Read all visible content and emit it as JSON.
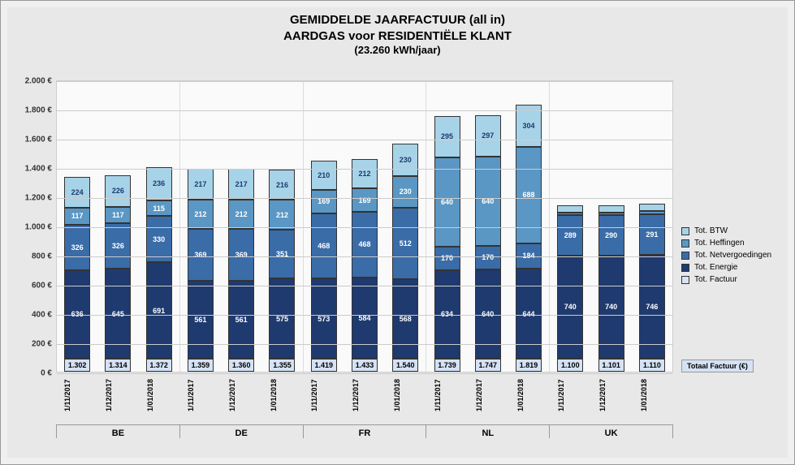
{
  "title": {
    "line1": "GEMIDDELDE JAARFACTUUR (all in)",
    "line2": "AARDGAS voor RESIDENTIËLE KLANT",
    "line3": "(23.260 kWh/jaar)",
    "fontsize_main": 15,
    "fontsize_sub": 13,
    "color": "#000000"
  },
  "chart": {
    "type": "stacked-bar",
    "background_color": "#fafafa",
    "container_bg": "#e8e8e8",
    "outer_bg": "#f0f0f0",
    "ylim": [
      0,
      2000
    ],
    "ytick_step": 200,
    "y_suffix": " €",
    "grid_color": "#cccccc",
    "bar_border": "#333333",
    "countries": [
      "BE",
      "DE",
      "FR",
      "NL",
      "UK"
    ],
    "dates": [
      "1/11/2017",
      "1/12/2017",
      "1/01/2018"
    ],
    "series": [
      {
        "key": "energie",
        "label": "Tot. Energie",
        "color": "#1f3a6e"
      },
      {
        "key": "netvergoedingen",
        "label": "Tot. Netvergoedingen",
        "color": "#3a6ca8"
      },
      {
        "key": "heffingen",
        "label": "Tot. Heffingen",
        "color": "#5a97c4"
      },
      {
        "key": "btw",
        "label": "Tot. BTW",
        "color": "#a6d3e8"
      }
    ],
    "factuur_series": {
      "label": "Tot. Factuur",
      "box_bg": "#d4e2f4",
      "box_border": "#333333"
    },
    "data": {
      "BE": [
        {
          "energie": 636,
          "netvergoedingen": 326,
          "heffingen": 117,
          "btw": 224,
          "total": "1.302"
        },
        {
          "energie": 645,
          "netvergoedingen": 326,
          "heffingen": 117,
          "btw": 226,
          "total": "1.314"
        },
        {
          "energie": 691,
          "netvergoedingen": 330,
          "heffingen": 115,
          "btw": 236,
          "total": "1.372"
        }
      ],
      "DE": [
        {
          "energie": 561,
          "netvergoedingen": 369,
          "heffingen": 212,
          "btw": 217,
          "total": "1.359"
        },
        {
          "energie": 561,
          "netvergoedingen": 369,
          "heffingen": 212,
          "btw": 217,
          "total": "1.360"
        },
        {
          "energie": 575,
          "netvergoedingen": 351,
          "heffingen": 212,
          "btw": 216,
          "total": "1.355"
        }
      ],
      "FR": [
        {
          "energie": 573,
          "netvergoedingen": 468,
          "heffingen": 169,
          "btw": 210,
          "total": "1.419"
        },
        {
          "energie": 584,
          "netvergoedingen": 468,
          "heffingen": 169,
          "btw": 212,
          "total": "1.433"
        },
        {
          "energie": 568,
          "netvergoedingen": 512,
          "heffingen": 230,
          "btw": 230,
          "total": "1.540"
        }
      ],
      "NL": [
        {
          "energie": 634,
          "netvergoedingen": 170,
          "heffingen": 640,
          "btw": 295,
          "total": "1.739"
        },
        {
          "energie": 640,
          "netvergoedingen": 170,
          "heffingen": 640,
          "btw": 297,
          "total": "1.747"
        },
        {
          "energie": 644,
          "netvergoedingen": 184,
          "heffingen": 688,
          "btw": 304,
          "total": "1.819"
        }
      ],
      "UK": [
        {
          "energie": 740,
          "netvergoedingen": 289,
          "heffingen": 19,
          "btw": 52,
          "total": "1.100"
        },
        {
          "energie": 740,
          "netvergoedingen": 290,
          "heffingen": 19,
          "btw": 52,
          "total": "1.101"
        },
        {
          "energie": 746,
          "netvergoedingen": 291,
          "heffingen": 19,
          "btw": 53,
          "total": "1.110"
        }
      ]
    },
    "totaal_label": "Totaal Factuur (€)"
  },
  "legend": {
    "order": [
      "btw",
      "heffingen",
      "netvergoedingen",
      "energie",
      "factuur"
    ]
  }
}
